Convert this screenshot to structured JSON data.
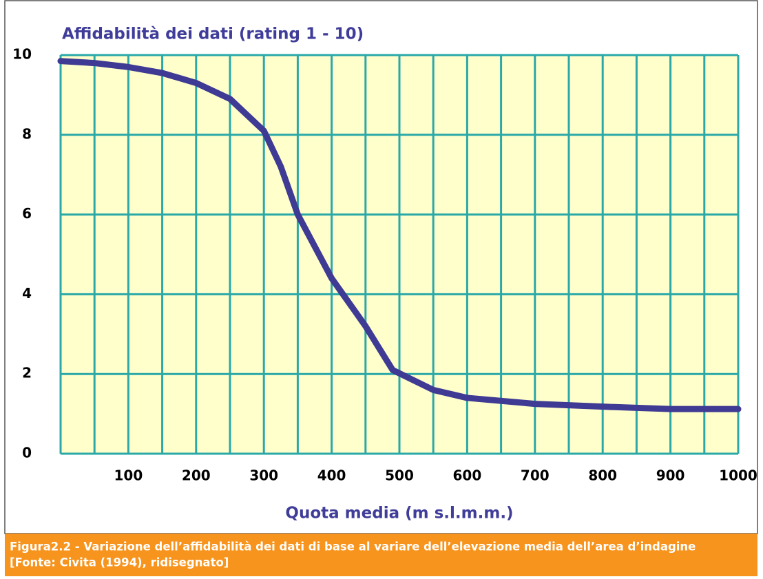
{
  "chart_data": {
    "type": "line",
    "title": "Affidabilità dei dati (rating 1 - 10)",
    "x_label": "Quota media (m s.l.m.m.)",
    "x": [
      0,
      50,
      100,
      150,
      200,
      250,
      300,
      325,
      350,
      400,
      450,
      490,
      550,
      600,
      700,
      800,
      900,
      1000
    ],
    "series": [
      {
        "name": "Affidabilità",
        "color": "#3f3a93",
        "values": [
          9.85,
          9.8,
          9.7,
          9.55,
          9.3,
          8.9,
          8.1,
          7.2,
          6.0,
          4.4,
          3.2,
          2.1,
          1.6,
          1.4,
          1.25,
          1.18,
          1.12,
          1.12
        ]
      }
    ],
    "xlim": [
      0,
      1000
    ],
    "xticks": [
      100,
      200,
      300,
      400,
      500,
      600,
      700,
      800,
      900,
      1000
    ],
    "x_minor_ticks": [
      50,
      150,
      250,
      350,
      450,
      550,
      650,
      750,
      850,
      950
    ],
    "ylim": [
      0,
      10
    ],
    "yticks": [
      0,
      2,
      4,
      6,
      8,
      10
    ],
    "grid": true,
    "grid_color": "#2aa8a8",
    "background": "#ffffcc"
  },
  "caption": [
    "Figura2.2 - Variazione dell’affidabilità dei dati di base al variare dell’elevazione media dell’area d’indagine",
    "[Fonte: Civita (1994), ridisegnato]"
  ]
}
